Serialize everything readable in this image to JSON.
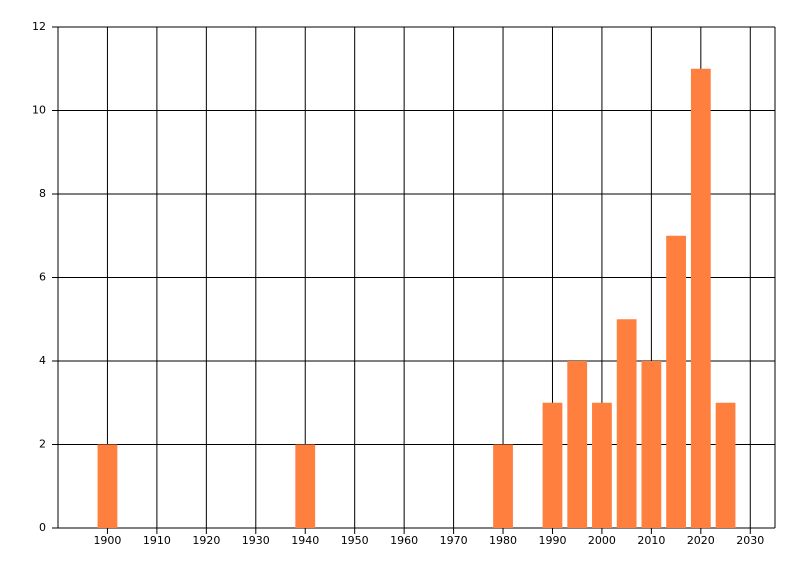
{
  "chart_data": {
    "type": "bar",
    "x": [
      1900,
      1940,
      1980,
      1990,
      1995,
      2000,
      2005,
      2010,
      2015,
      2020,
      2025
    ],
    "values": [
      2,
      2,
      2,
      3,
      4,
      3,
      5,
      4,
      7,
      11,
      3
    ],
    "color": "#ff7f3f",
    "xlim": [
      1890,
      2035
    ],
    "xticks": [
      1900,
      1910,
      1920,
      1930,
      1940,
      1950,
      1960,
      1970,
      1980,
      1990,
      2000,
      2010,
      2020,
      2030
    ],
    "ylim": [
      0,
      12
    ],
    "yticks": [
      0,
      2,
      4,
      6,
      8,
      10,
      12
    ],
    "grid": true
  }
}
